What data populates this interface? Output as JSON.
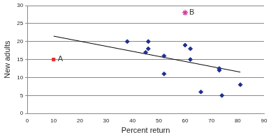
{
  "chart_data": {
    "type": "scatter",
    "xlabel": "Percent return",
    "ylabel": "New adults",
    "xlim": [
      0,
      90
    ],
    "xticks": [
      0,
      10,
      20,
      30,
      40,
      50,
      60,
      70,
      80,
      90
    ],
    "ylim": [
      0,
      30
    ],
    "yticks": [
      0,
      5,
      10,
      15,
      20,
      25,
      30
    ],
    "grid": "y",
    "series": [
      {
        "type": "scatter",
        "color": "#1f2f8f",
        "marker": "diamond",
        "x": [
          38,
          45,
          46,
          46,
          52,
          52,
          60,
          62,
          62,
          66,
          73,
          73,
          74,
          81
        ],
        "values": [
          20,
          17,
          18,
          20,
          16,
          11,
          19,
          18,
          15,
          6,
          12,
          12.5,
          5,
          8
        ]
      },
      {
        "type": "scatter",
        "color": "#e03030",
        "marker": "square",
        "x": [
          10
        ],
        "values": [
          15
        ]
      },
      {
        "type": "scatter",
        "color": "#d040a0",
        "marker": "star",
        "x": [
          60
        ],
        "values": [
          28
        ]
      },
      {
        "type": "line",
        "color": "#000000",
        "line_style": "solid",
        "x": [
          10,
          81
        ],
        "values": [
          21.5,
          11.5
        ]
      }
    ],
    "annotations": [
      {
        "text": "A",
        "x": 10,
        "y": 15
      },
      {
        "text": "B",
        "x": 60,
        "y": 28
      }
    ]
  }
}
